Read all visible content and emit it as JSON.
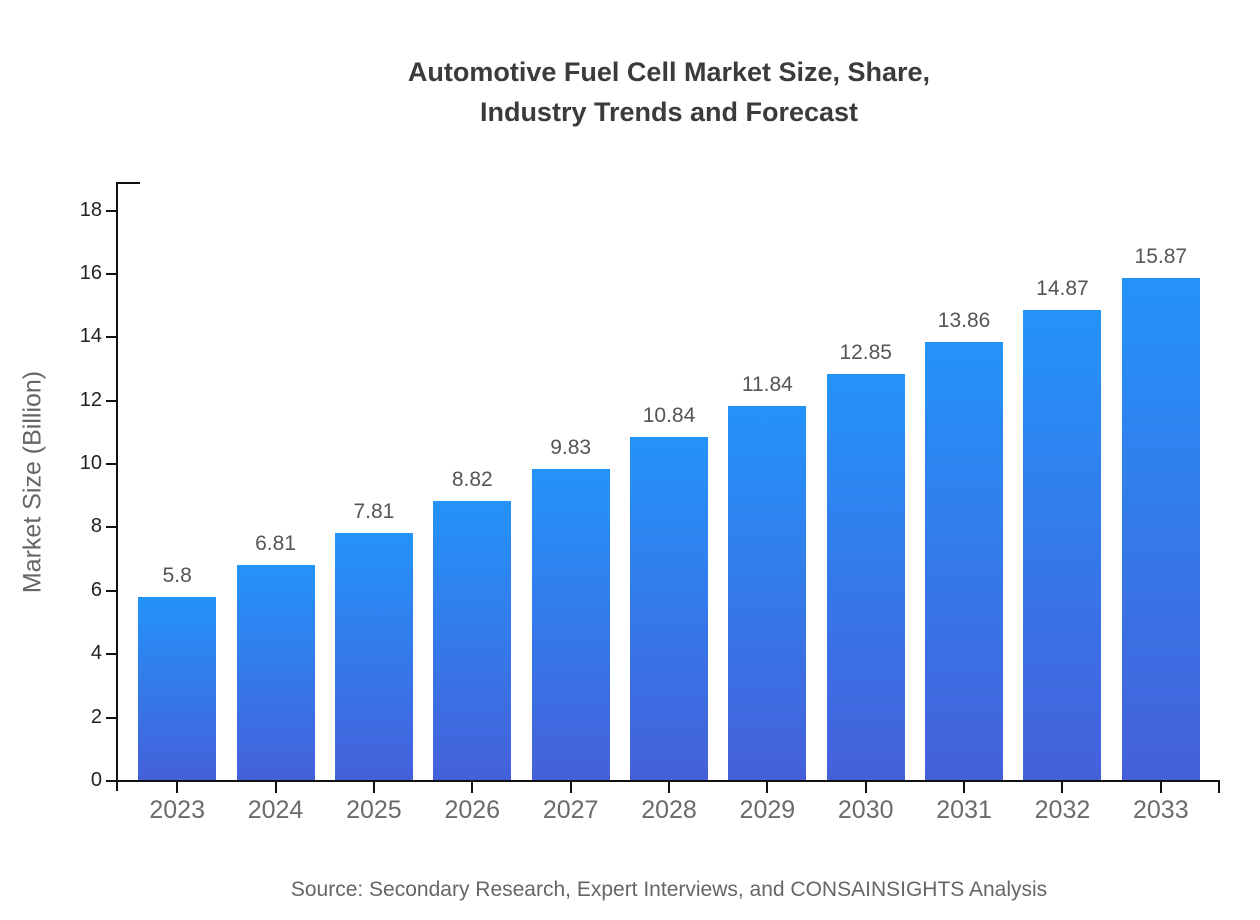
{
  "chart_data": {
    "type": "bar",
    "title": "Automotive Fuel Cell Market Size, Share,\nIndustry Trends and Forecast",
    "categories": [
      "2023",
      "2024",
      "2025",
      "2026",
      "2027",
      "2028",
      "2029",
      "2030",
      "2031",
      "2032",
      "2033"
    ],
    "values": [
      5.8,
      6.81,
      7.81,
      8.82,
      9.83,
      10.84,
      11.84,
      12.85,
      13.86,
      14.87,
      15.87
    ],
    "xlabel": "",
    "ylabel": "Market Size (Billion)",
    "yticks": [
      0,
      2,
      4,
      6,
      8,
      10,
      12,
      14,
      16,
      18
    ],
    "ylim": [
      0,
      18.9
    ],
    "grid": false,
    "legend": "none",
    "data_labels": true,
    "colors": {
      "bar_gradient_top": "#2493f9",
      "bar_gradient_bottom": "#4560da",
      "axis": "#111111",
      "title_text": "#3b3b3b",
      "x_tick_text": "#6b6b6b",
      "y_tick_text": "#222222",
      "value_label_text": "#555555"
    }
  },
  "footer": {
    "source": "Source: Secondary Research, Expert Interviews, and CONSAINSIGHTS Analysis"
  }
}
